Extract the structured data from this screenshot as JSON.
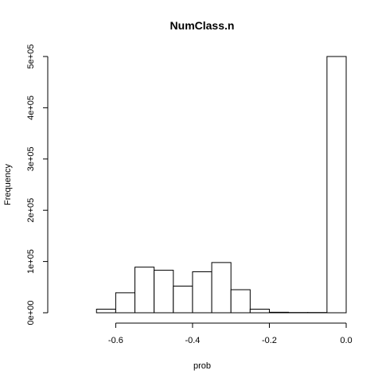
{
  "chart_data": {
    "type": "bar",
    "title": "NumClass.n",
    "xlabel": "prob",
    "ylabel": "Frequency",
    "xlim": [
      -0.75,
      0.0
    ],
    "ylim": [
      0,
      500000
    ],
    "x_ticks": [
      -0.6,
      -0.4,
      -0.2,
      0.0
    ],
    "x_tick_labels": [
      "-0.6",
      "-0.4",
      "-0.2",
      "0.0"
    ],
    "y_ticks": [
      0,
      100000,
      200000,
      300000,
      400000,
      500000
    ],
    "y_tick_labels": [
      "0e+00",
      "1e+05",
      "2e+05",
      "3e+05",
      "4e+05",
      "5e+05"
    ],
    "bins": [
      {
        "x0": -0.65,
        "x1": -0.6,
        "count": 7000
      },
      {
        "x0": -0.6,
        "x1": -0.55,
        "count": 39000
      },
      {
        "x0": -0.55,
        "x1": -0.5,
        "count": 89000
      },
      {
        "x0": -0.5,
        "x1": -0.45,
        "count": 83000
      },
      {
        "x0": -0.45,
        "x1": -0.4,
        "count": 52000
      },
      {
        "x0": -0.4,
        "x1": -0.35,
        "count": 80000
      },
      {
        "x0": -0.35,
        "x1": -0.3,
        "count": 98000
      },
      {
        "x0": -0.3,
        "x1": -0.25,
        "count": 45000
      },
      {
        "x0": -0.25,
        "x1": -0.2,
        "count": 7000
      },
      {
        "x0": -0.2,
        "x1": -0.15,
        "count": 1000
      },
      {
        "x0": -0.15,
        "x1": -0.1,
        "count": 500
      },
      {
        "x0": -0.1,
        "x1": -0.05,
        "count": 500
      },
      {
        "x0": -0.05,
        "x1": 0.0,
        "count": 500000
      }
    ],
    "grid": false,
    "legend": "none"
  }
}
